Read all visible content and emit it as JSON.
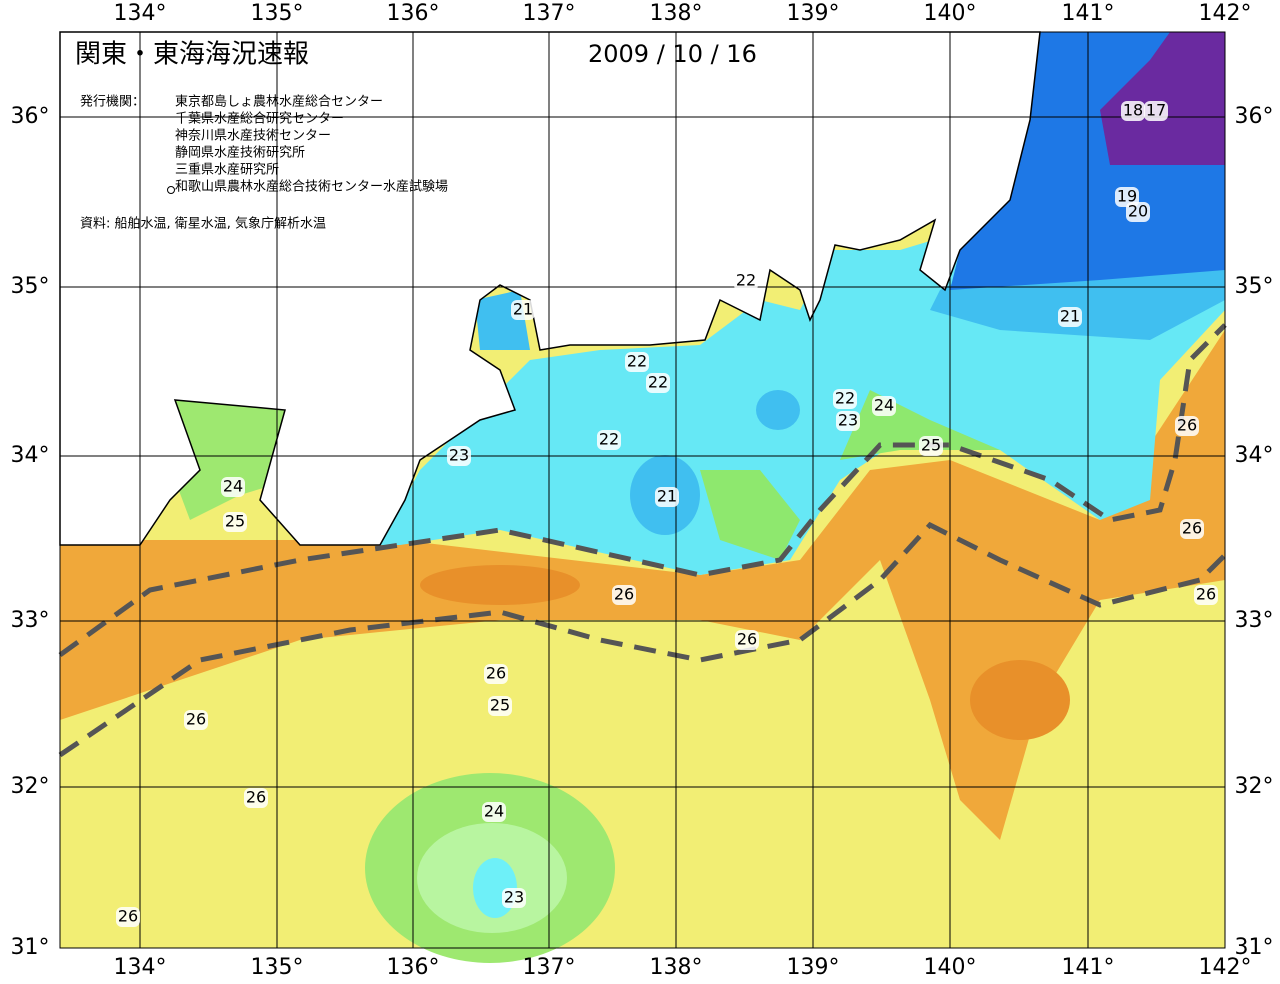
{
  "header": {
    "title": "関東・東海海況速報",
    "date": "2009 / 10 / 16"
  },
  "agencies": {
    "label": "発行機関：",
    "items": [
      "東京都島しょ農林水産総合センター",
      "千葉県水産総合研究センター",
      "神奈川県水産技術センター",
      "静岡県水産技術研究所",
      "三重県水産研究所",
      "和歌山県農林水産総合技術センター水産試験場"
    ]
  },
  "source": "資料: 船舶水温, 衛星水温, 気象庁解析水温",
  "lon_ticks": [
    "134°",
    "135°",
    "136°",
    "137°",
    "138°",
    "139°",
    "140°",
    "141°",
    "142°"
  ],
  "lat_ticks": [
    "36°",
    "35°",
    "34°",
    "33°",
    "32°",
    "31°"
  ],
  "contour_labels": [
    "18",
    "17",
    "19",
    "20",
    "22",
    "21",
    "21",
    "22",
    "22",
    "22",
    "23",
    "24",
    "22",
    "26",
    "25",
    "23",
    "21",
    "24",
    "25",
    "26",
    "26",
    "26",
    "26",
    "26",
    "25",
    "26",
    "26",
    "24",
    "23",
    "26"
  ]
}
